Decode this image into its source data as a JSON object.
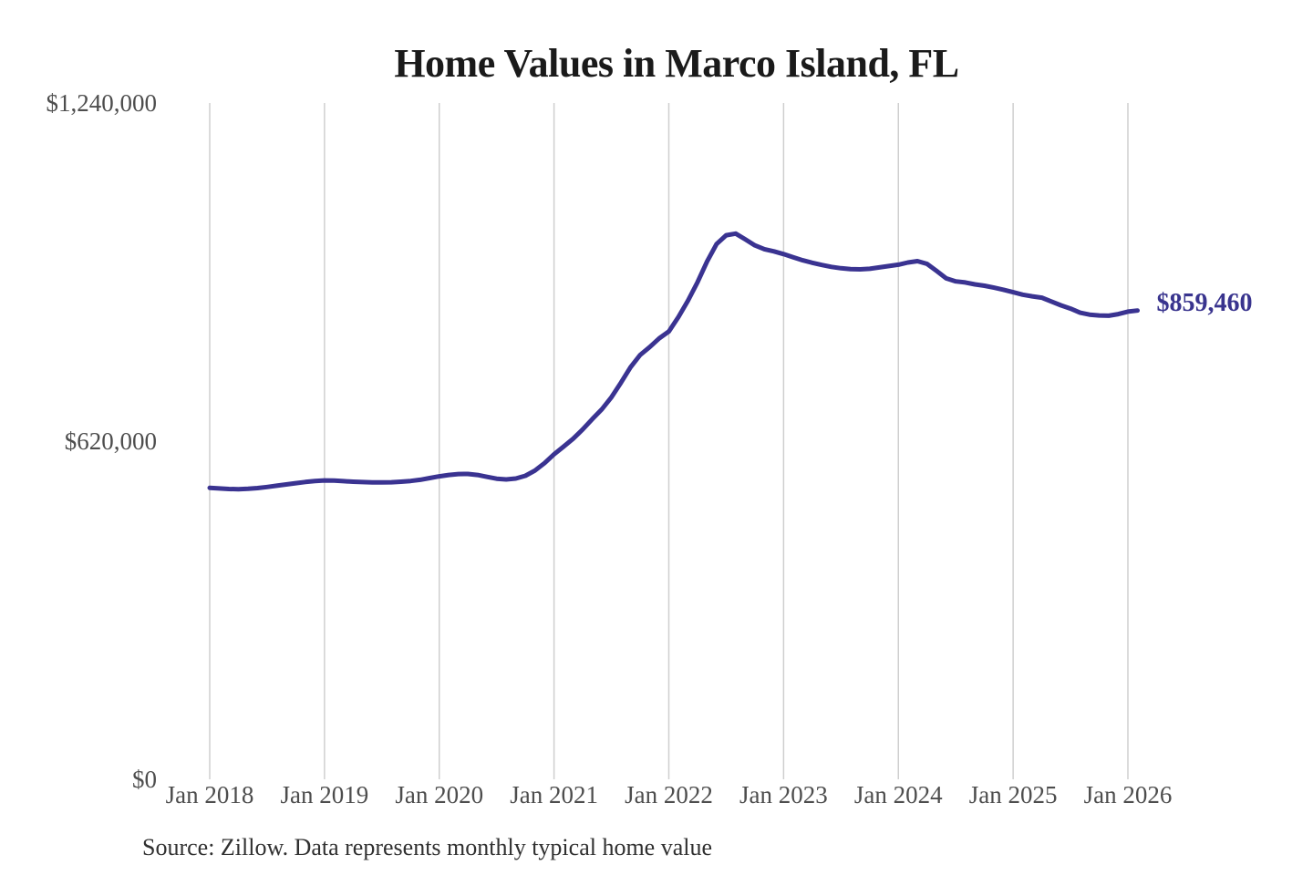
{
  "chart": {
    "title": "Home Values in Marco Island, FL",
    "source_note": "Source: Zillow. Data represents monthly typical home value"
  },
  "chart_data": {
    "type": "line",
    "title": "Home Values in Marco Island, FL",
    "xlabel": "",
    "ylabel": "",
    "ylim": [
      0,
      1240000
    ],
    "y_ticks": [
      0,
      620000,
      1240000
    ],
    "y_tick_labels": [
      "$0",
      "$620,000",
      "$1,240,000"
    ],
    "x_tick_labels": [
      "Jan 2018",
      "Jan 2019",
      "Jan 2020",
      "Jan 2021",
      "Jan 2022",
      "Jan 2023",
      "Jan 2024",
      "Jan 2025",
      "Jan 2026"
    ],
    "x_start": "2018-01",
    "x_freq": "monthly",
    "grid": "vertical-only",
    "legend": "none",
    "line_color": "#3a3391",
    "gridline_color": "#cfcfcf",
    "axis_text_color": "#4d4d4d",
    "end_label": "$859,460",
    "latest_value": 859460,
    "series": [
      {
        "name": "Typical home value",
        "values": [
          534500,
          533200,
          532300,
          532000,
          532600,
          534000,
          536000,
          538300,
          540700,
          543000,
          545100,
          546800,
          548000,
          547600,
          546700,
          545700,
          544900,
          544400,
          544300,
          544700,
          545600,
          547000,
          549200,
          552300,
          555500,
          558000,
          559700,
          559900,
          558000,
          554500,
          551200,
          549800,
          551500,
          556500,
          566000,
          579500,
          596000,
          610000,
          624500,
          641500,
          660500,
          678500,
          700500,
          727500,
          755500,
          778000,
          792500,
          808500,
          821000,
          847500,
          877500,
          911500,
          949500,
          981500,
          997500,
          1000500,
          990000,
          979000,
          972000,
          968000,
          963000,
          957000,
          951500,
          947000,
          943000,
          939500,
          937000,
          935500,
          935000,
          936000,
          938500,
          941000,
          943500,
          947500,
          950000,
          945000,
          932000,
          918500,
          913000,
          911000,
          907500,
          905000,
          901500,
          897500,
          893000,
          888500,
          885500,
          883000,
          876000,
          869000,
          863000,
          855500,
          852000,
          850500,
          850000,
          853000,
          857500,
          859460
        ]
      }
    ]
  }
}
